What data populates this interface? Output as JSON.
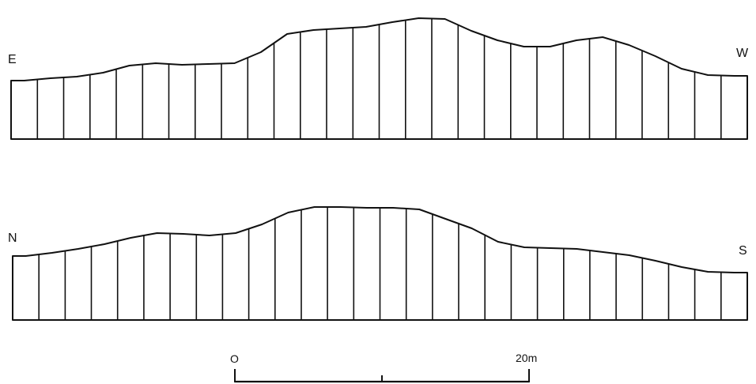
{
  "profile_1": {
    "left_label": "E",
    "right_label": "W",
    "column_heights": [
      74,
      77,
      79,
      84,
      93,
      96,
      94,
      95,
      96,
      110,
      133,
      138,
      140,
      142,
      148,
      153,
      152,
      137,
      125,
      117,
      117,
      125,
      129,
      119,
      105,
      89,
      81,
      80
    ]
  },
  "profile_2": {
    "left_label": "N",
    "right_label": "S",
    "column_heights": [
      81,
      85,
      90,
      96,
      104,
      110,
      109,
      107,
      110,
      121,
      136,
      143,
      143,
      142,
      142,
      140,
      128,
      116,
      99,
      92,
      91,
      90,
      86,
      82,
      75,
      67,
      61,
      60
    ]
  },
  "scale": {
    "start_label": "O",
    "end_label": "20m"
  },
  "colors": {
    "ink": "#111111",
    "background": "#ffffff"
  }
}
